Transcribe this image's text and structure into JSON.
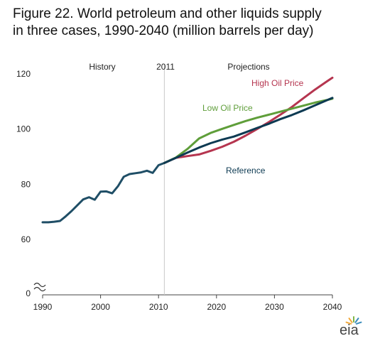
{
  "title": {
    "line1": "Figure 22. World petroleum and other liquids supply",
    "line2": "in three cases, 1990-2040 (million barrels per day)"
  },
  "logo": {
    "text": "eia",
    "icon": "sunburst"
  },
  "colors": {
    "history": "#1f4e66",
    "reference": "#0d3a52",
    "high": "#b5354f",
    "low": "#5f9e3a",
    "divider": "#c8c8c8"
  },
  "chart_data": {
    "type": "line",
    "x_ticks": [
      1990,
      2000,
      2010,
      2020,
      2030,
      2040
    ],
    "y_ticks": [
      0,
      60,
      80,
      100,
      120
    ],
    "xlim": [
      1990,
      2040
    ],
    "ylim": [
      50,
      120
    ],
    "y_axis_break": true,
    "grid": false,
    "band_labels": {
      "history": "History",
      "divider_year": "2011",
      "projections": "Projections"
    },
    "series": [
      {
        "name": "History",
        "key": "history",
        "x": [
          1990,
          1991,
          1992,
          1993,
          1994,
          1995,
          1996,
          1997,
          1998,
          1999,
          2000,
          2001,
          2002,
          2003,
          2004,
          2005,
          2006,
          2007,
          2008,
          2009,
          2010,
          2011
        ],
        "y": [
          66.2,
          66.2,
          66.4,
          66.7,
          68.4,
          70.3,
          72.4,
          74.5,
          75.3,
          74.4,
          77.3,
          77.4,
          76.7,
          79.3,
          82.7,
          83.7,
          84.0,
          84.3,
          84.9,
          84.1,
          86.9,
          87.7
        ]
      },
      {
        "name": "Reference",
        "key": "reference",
        "x": [
          2011,
          2013,
          2015,
          2017,
          2019,
          2021,
          2023,
          2025,
          2027,
          2029,
          2031,
          2033,
          2035,
          2037,
          2039,
          2040
        ],
        "y": [
          87.7,
          89.6,
          91.5,
          93.3,
          94.9,
          96.2,
          97.3,
          98.8,
          100.4,
          101.9,
          103.6,
          105.1,
          106.8,
          108.6,
          110.4,
          111.3
        ]
      },
      {
        "name": "High Oil Price",
        "key": "high",
        "x": [
          2011,
          2013,
          2015,
          2017,
          2019,
          2021,
          2023,
          2025,
          2027,
          2029,
          2031,
          2033,
          2035,
          2037,
          2039,
          2040
        ],
        "y": [
          87.7,
          89.6,
          90.2,
          90.8,
          92.1,
          93.6,
          95.4,
          97.6,
          100.0,
          102.5,
          105.2,
          108.0,
          111.2,
          114.3,
          117.2,
          118.6
        ]
      },
      {
        "name": "Low Oil Price",
        "key": "low",
        "x": [
          2011,
          2013,
          2015,
          2017,
          2019,
          2021,
          2023,
          2025,
          2027,
          2029,
          2031,
          2033,
          2035,
          2037,
          2039,
          2040
        ],
        "y": [
          87.7,
          89.7,
          92.8,
          96.6,
          98.6,
          100.1,
          101.5,
          102.9,
          104.1,
          105.2,
          106.3,
          107.4,
          108.5,
          109.6,
          110.5,
          111.0
        ]
      }
    ]
  }
}
